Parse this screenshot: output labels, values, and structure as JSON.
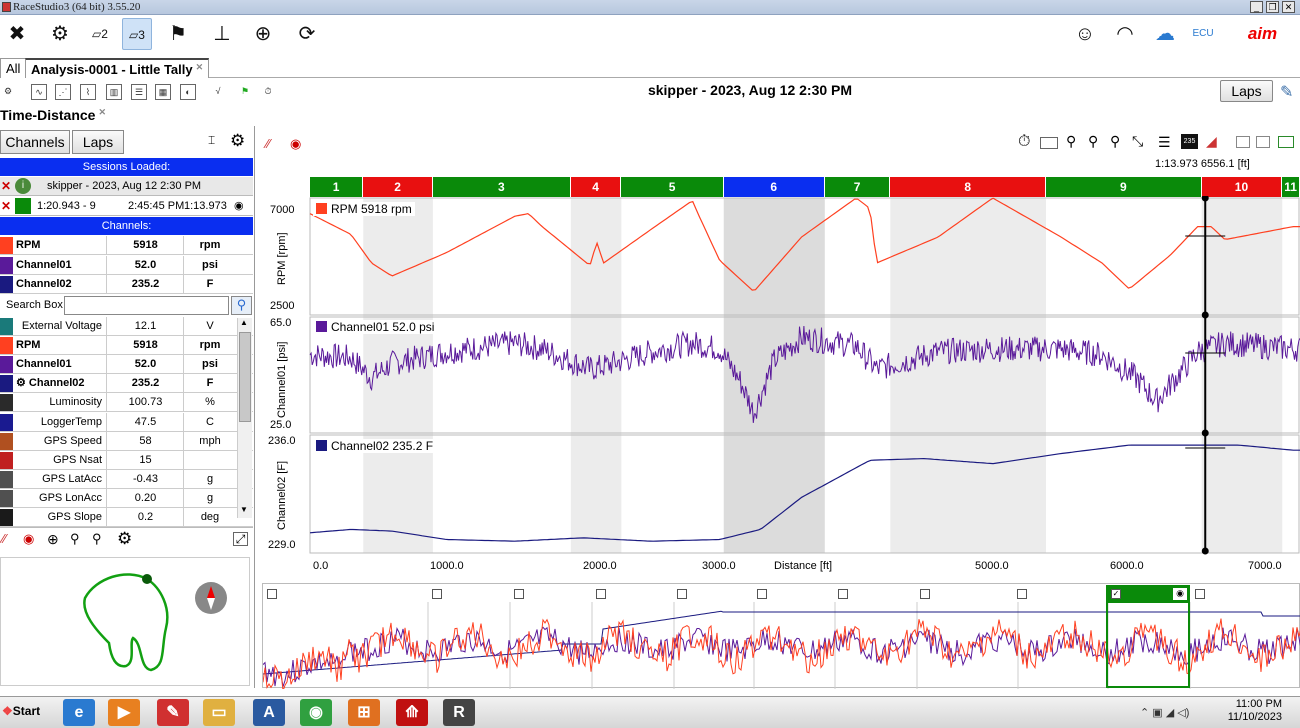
{
  "window": {
    "title": "RaceStudio3 (64 bit) 3.55.20"
  },
  "tabs": [
    {
      "label": "All"
    },
    {
      "label": "Analysis-0001 - Little Tally"
    }
  ],
  "session_title": "skipper - 2023, Aug 12 2:30 PM",
  "laps_button": "Laps",
  "view_title": "Time-Distance",
  "left": {
    "channels_btn": "Channels",
    "laps_btn": "Laps",
    "sessions_loaded": "Sessions Loaded:",
    "session_name": "skipper - 2023, Aug 12 2:30 PM",
    "lap_info": {
      "best": "1:20.943 - 9",
      "time": "2:45:45 PM",
      "lap": "1:13.973"
    },
    "channels_header": "Channels:",
    "pinned": [
      {
        "name": "RPM",
        "value": "5918",
        "unit": "rpm",
        "color": "#ff4020"
      },
      {
        "name": "Channel01",
        "value": "52.0",
        "unit": "psi",
        "color": "#5a1a9a"
      },
      {
        "name": "Channel02",
        "value": "235.2",
        "unit": "F",
        "color": "#1a1a80"
      }
    ],
    "search_label": "Search Box",
    "list": [
      {
        "name": "External Voltage",
        "value": "12.1",
        "unit": "V",
        "color": "#1a7a7a",
        "bold": false
      },
      {
        "name": "RPM",
        "value": "5918",
        "unit": "rpm",
        "color": "#ff4020",
        "bold": true
      },
      {
        "name": "Channel01",
        "value": "52.0",
        "unit": "psi",
        "color": "#5a1a9a",
        "bold": true
      },
      {
        "name": "Channel02",
        "value": "235.2",
        "unit": "F",
        "color": "#1a1a80",
        "bold": true
      },
      {
        "name": "Luminosity",
        "value": "100.73",
        "unit": "%",
        "color": "#2a2a2a",
        "bold": false
      },
      {
        "name": "LoggerTemp",
        "value": "47.5",
        "unit": "C",
        "color": "#1a1a90",
        "bold": false
      },
      {
        "name": "GPS Speed",
        "value": "58",
        "unit": "mph",
        "color": "#b05020",
        "bold": false
      },
      {
        "name": "GPS Nsat",
        "value": "15",
        "unit": "",
        "color": "#c02020",
        "bold": false
      },
      {
        "name": "GPS LatAcc",
        "value": "-0.43",
        "unit": "g",
        "color": "#505050",
        "bold": false
      },
      {
        "name": "GPS LonAcc",
        "value": "0.20",
        "unit": "g",
        "color": "#505050",
        "bold": false
      },
      {
        "name": "GPS Slope",
        "value": "0.2",
        "unit": "deg",
        "color": "#1a1a1a",
        "bold": false
      }
    ]
  },
  "cursor_readout": "1:13.973  6556.1 [ft]",
  "laps": [
    "1",
    "2",
    "3",
    "4",
    "5",
    "6",
    "7",
    "8",
    "9",
    "10",
    "11"
  ],
  "lap_colors": [
    "#0a8a0a",
    "#e81010",
    "#0a8a0a",
    "#e81010",
    "#0a8a0a",
    "#0a2ef0",
    "#0a8a0a",
    "#e81010",
    "#0a8a0a",
    "#e81010",
    "#0a8a0a"
  ],
  "chart_data": {
    "type": "line",
    "xlabel": "Distance [ft]",
    "x_ticks": [
      "0.0",
      "1000.0",
      "2000.0",
      "3000.0",
      "5000.0",
      "6000.0",
      "7000.0"
    ],
    "cursor_x": 6556.1,
    "panels": [
      {
        "name": "RPM",
        "ylabel": "RPM [rpm]",
        "ymin": "2500",
        "ymax": "7000",
        "legend": "RPM  5918  rpm",
        "color": "#ff4020",
        "x": [
          0,
          300,
          450,
          600,
          1000,
          1500,
          1600,
          1700,
          2050,
          2100,
          2150,
          2500,
          2800,
          2850,
          3000,
          3250,
          3600,
          4000,
          4100,
          4150,
          4600,
          5000,
          5500,
          5800,
          6000,
          6300,
          6500,
          6600,
          6700,
          7200
        ],
        "y": [
          6400,
          5600,
          4500,
          4000,
          4900,
          6300,
          6400,
          5900,
          4400,
          5300,
          4500,
          5800,
          6900,
          6300,
          4600,
          3400,
          5500,
          7000,
          6600,
          4500,
          5500,
          7000,
          5500,
          4500,
          3500,
          4800,
          5900,
          5900,
          5400,
          5900
        ]
      },
      {
        "name": "Channel01",
        "ylabel": "Channel01 [psi]",
        "ymin": "25.0",
        "ymax": "65.0",
        "legend": "Channel01  52.0  psi",
        "color": "#5a1a9a",
        "x": [
          0,
          300,
          450,
          600,
          1000,
          1500,
          1600,
          1700,
          2050,
          2150,
          2500,
          2800,
          3000,
          3150,
          3250,
          3400,
          3600,
          4000,
          4150,
          4600,
          5000,
          5500,
          5800,
          6050,
          6200,
          6500,
          6700,
          7200
        ],
        "y": [
          52,
          51,
          44,
          49,
          53,
          56,
          55,
          54,
          47,
          48,
          53,
          56,
          54,
          43,
          32,
          50,
          58,
          55,
          47,
          53,
          54,
          54,
          52,
          44,
          36,
          53,
          56,
          54
        ]
      },
      {
        "name": "Channel02",
        "ylabel": "Channel02 [F]",
        "ymin": "229.0",
        "ymax": "236.0",
        "legend": "Channel02  235.2  F",
        "color": "#1a1a80",
        "x": [
          0,
          300,
          600,
          1000,
          1500,
          2000,
          2500,
          3000,
          3300,
          3600,
          4100,
          4500,
          5000,
          5500,
          6000,
          6500,
          6800,
          7200
        ],
        "y": [
          230.2,
          230.4,
          230.3,
          229.8,
          229.7,
          229.9,
          229.7,
          229.8,
          230.4,
          232.3,
          234.5,
          234.6,
          234.3,
          234.9,
          235.4,
          235.4,
          235.4,
          235.1
        ]
      }
    ]
  },
  "taskbar": {
    "start": "Start",
    "time": "11:00 PM",
    "date": "11/10/2023"
  }
}
